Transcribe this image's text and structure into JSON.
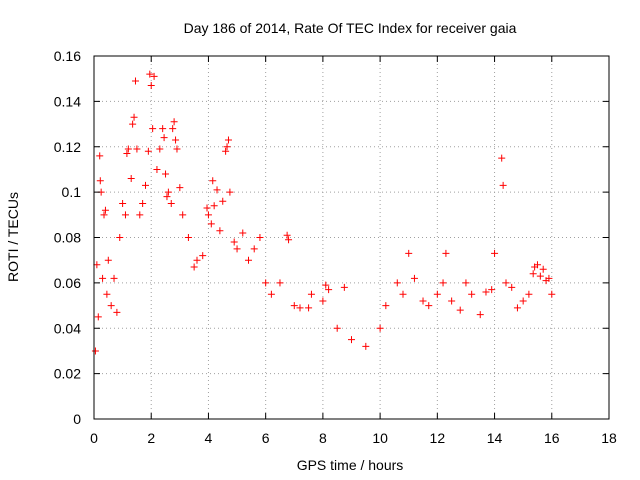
{
  "chart_data": {
    "type": "scatter",
    "title": "Day 186 of 2014, Rate Of TEC Index for receiver gaia",
    "xlabel": "GPS time / hours",
    "ylabel": "ROTI / TECUs",
    "xlim": [
      0,
      18
    ],
    "ylim": [
      0,
      0.16
    ],
    "xticks": [
      0,
      2,
      4,
      6,
      8,
      10,
      12,
      14,
      16,
      18
    ],
    "yticks": [
      0,
      0.02,
      0.04,
      0.06,
      0.08,
      0.1,
      0.12,
      0.14,
      0.16
    ],
    "xtick_labels": [
      "0",
      "2",
      "4",
      "6",
      "8",
      "10",
      "12",
      "14",
      "16",
      "18"
    ],
    "ytick_labels": [
      "0",
      "0.02",
      "0.04",
      "0.06",
      "0.08",
      "0.1",
      "0.12",
      "0.14",
      "0.16"
    ],
    "grid": true,
    "marker": "+",
    "color": "#ff0000",
    "series": [
      {
        "name": "ROTI",
        "points": [
          [
            0.05,
            0.03
          ],
          [
            0.1,
            0.068
          ],
          [
            0.15,
            0.045
          ],
          [
            0.2,
            0.116
          ],
          [
            0.22,
            0.105
          ],
          [
            0.25,
            0.1
          ],
          [
            0.3,
            0.062
          ],
          [
            0.35,
            0.09
          ],
          [
            0.4,
            0.092
          ],
          [
            0.45,
            0.055
          ],
          [
            0.5,
            0.07
          ],
          [
            0.6,
            0.05
          ],
          [
            0.7,
            0.062
          ],
          [
            0.8,
            0.047
          ],
          [
            0.9,
            0.08
          ],
          [
            1.0,
            0.095
          ],
          [
            1.1,
            0.09
          ],
          [
            1.15,
            0.117
          ],
          [
            1.2,
            0.119
          ],
          [
            1.3,
            0.106
          ],
          [
            1.35,
            0.13
          ],
          [
            1.4,
            0.133
          ],
          [
            1.45,
            0.149
          ],
          [
            1.5,
            0.119
          ],
          [
            1.6,
            0.09
          ],
          [
            1.7,
            0.095
          ],
          [
            1.8,
            0.103
          ],
          [
            1.9,
            0.118
          ],
          [
            1.95,
            0.152
          ],
          [
            2.0,
            0.147
          ],
          [
            2.05,
            0.128
          ],
          [
            2.1,
            0.151
          ],
          [
            2.2,
            0.11
          ],
          [
            2.3,
            0.119
          ],
          [
            2.4,
            0.128
          ],
          [
            2.45,
            0.124
          ],
          [
            2.5,
            0.108
          ],
          [
            2.55,
            0.098
          ],
          [
            2.6,
            0.1
          ],
          [
            2.7,
            0.095
          ],
          [
            2.75,
            0.128
          ],
          [
            2.8,
            0.131
          ],
          [
            2.85,
            0.123
          ],
          [
            2.9,
            0.119
          ],
          [
            3.0,
            0.102
          ],
          [
            3.1,
            0.09
          ],
          [
            3.3,
            0.08
          ],
          [
            3.5,
            0.067
          ],
          [
            3.6,
            0.07
          ],
          [
            3.8,
            0.072
          ],
          [
            3.95,
            0.093
          ],
          [
            4.0,
            0.09
          ],
          [
            4.1,
            0.086
          ],
          [
            4.15,
            0.105
          ],
          [
            4.2,
            0.094
          ],
          [
            4.3,
            0.101
          ],
          [
            4.4,
            0.083
          ],
          [
            4.5,
            0.096
          ],
          [
            4.6,
            0.118
          ],
          [
            4.65,
            0.12
          ],
          [
            4.7,
            0.123
          ],
          [
            4.75,
            0.1
          ],
          [
            4.9,
            0.078
          ],
          [
            5.0,
            0.075
          ],
          [
            5.2,
            0.082
          ],
          [
            5.4,
            0.07
          ],
          [
            5.6,
            0.075
          ],
          [
            5.8,
            0.08
          ],
          [
            6.0,
            0.06
          ],
          [
            6.2,
            0.055
          ],
          [
            6.5,
            0.06
          ],
          [
            6.75,
            0.081
          ],
          [
            6.8,
            0.079
          ],
          [
            7.0,
            0.05
          ],
          [
            7.2,
            0.049
          ],
          [
            7.5,
            0.049
          ],
          [
            7.6,
            0.055
          ],
          [
            8.0,
            0.052
          ],
          [
            8.1,
            0.059
          ],
          [
            8.2,
            0.057
          ],
          [
            8.5,
            0.04
          ],
          [
            8.75,
            0.058
          ],
          [
            9.0,
            0.035
          ],
          [
            9.5,
            0.032
          ],
          [
            10.0,
            0.04
          ],
          [
            10.2,
            0.05
          ],
          [
            10.6,
            0.06
          ],
          [
            10.8,
            0.055
          ],
          [
            11.0,
            0.073
          ],
          [
            11.2,
            0.062
          ],
          [
            11.5,
            0.052
          ],
          [
            11.7,
            0.05
          ],
          [
            12.0,
            0.055
          ],
          [
            12.2,
            0.06
          ],
          [
            12.3,
            0.073
          ],
          [
            12.5,
            0.052
          ],
          [
            12.8,
            0.048
          ],
          [
            13.0,
            0.06
          ],
          [
            13.2,
            0.055
          ],
          [
            13.5,
            0.046
          ],
          [
            13.7,
            0.056
          ],
          [
            13.9,
            0.057
          ],
          [
            14.0,
            0.073
          ],
          [
            14.25,
            0.115
          ],
          [
            14.3,
            0.103
          ],
          [
            14.4,
            0.06
          ],
          [
            14.6,
            0.058
          ],
          [
            14.8,
            0.049
          ],
          [
            15.0,
            0.052
          ],
          [
            15.2,
            0.055
          ],
          [
            15.35,
            0.064
          ],
          [
            15.4,
            0.067
          ],
          [
            15.5,
            0.068
          ],
          [
            15.6,
            0.063
          ],
          [
            15.7,
            0.066
          ],
          [
            15.8,
            0.061
          ],
          [
            15.9,
            0.062
          ],
          [
            16.0,
            0.055
          ]
        ]
      }
    ]
  }
}
